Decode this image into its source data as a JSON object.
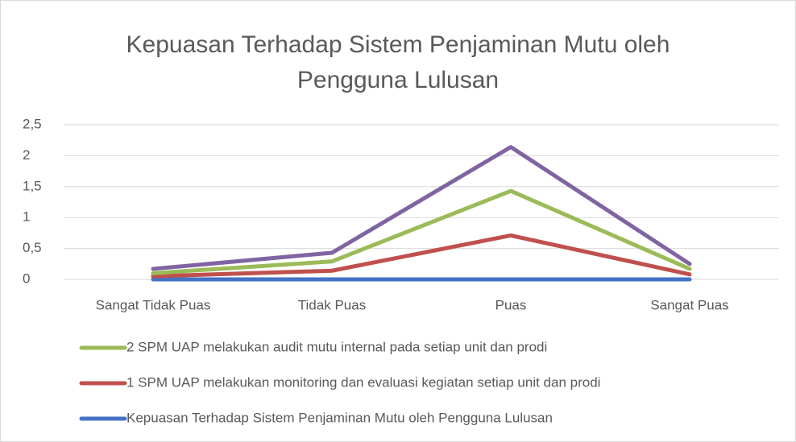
{
  "chart_data": {
    "type": "line",
    "stacked": true,
    "title": [
      "Kepuasan Terhadap Sistem Penjaminan Mutu oleh",
      "Pengguna Lulusan"
    ],
    "categories": [
      "Sangat Tidak Puas",
      "Tidak Puas",
      "Puas",
      "Sangat Puas"
    ],
    "series": [
      {
        "name": "Kepuasan Terhadap Sistem Penjaminan Mutu oleh Pengguna Lulusan",
        "color": "#4472c4",
        "values": [
          0,
          0,
          0,
          0
        ]
      },
      {
        "name": "1 SPM UAP melakukan monitoring dan evaluasi kegiatan setiap unit dan prodi",
        "color": "#c0504d",
        "values": [
          0.05,
          0.14,
          0.71,
          0.08
        ]
      },
      {
        "name": "2 SPM UAP melakukan audit mutu internal pada setiap unit dan prodi",
        "color": "#9bbb59",
        "values": [
          0.05,
          0.15,
          0.72,
          0.09
        ]
      },
      {
        "name": null,
        "color": "#8064a2",
        "values": [
          0.07,
          0.14,
          0.71,
          0.08
        ]
      }
    ],
    "ylim": [
      0,
      2.5
    ],
    "yticks": [
      0,
      {
        "value": 0.5,
        "label": "0,5"
      },
      1,
      {
        "value": 1.5,
        "label": "1,5"
      },
      2,
      {
        "value": 2.5,
        "label": "2,5"
      }
    ],
    "grid": true,
    "legend": "bottom"
  }
}
